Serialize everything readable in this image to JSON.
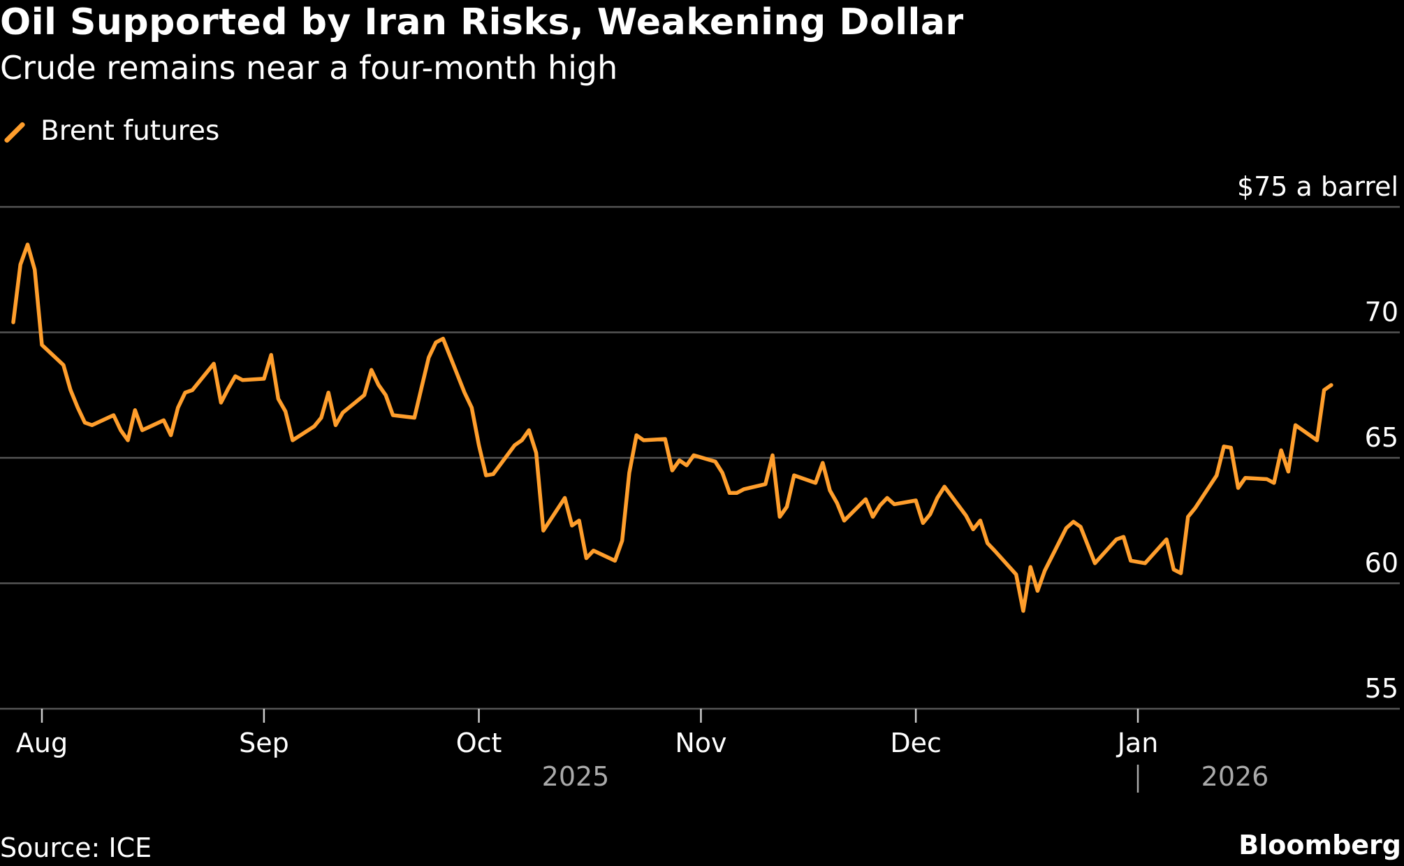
{
  "title": "Oil Supported by Iran Risks, Weakening Dollar",
  "subtitle": "Crude remains near a four-month high",
  "source": "Source: ICE",
  "brand": "Bloomberg",
  "chart_data": {
    "type": "line",
    "title": "Oil Supported by Iran Risks, Weakening Dollar",
    "subtitle": "Crude remains near a four-month high",
    "ylabel_unit": "$75 a barrel",
    "ylim": [
      55,
      75
    ],
    "yticks": [
      55,
      60,
      65,
      70,
      75
    ],
    "ytick_labels": [
      "55",
      "60",
      "65",
      "70",
      "$75 a barrel"
    ],
    "xticks": [
      {
        "date": "2025-08-01",
        "label": "Aug"
      },
      {
        "date": "2025-09-01",
        "label": "Sep"
      },
      {
        "date": "2025-10-01",
        "label": "Oct"
      },
      {
        "date": "2025-11-01",
        "label": "Nov"
      },
      {
        "date": "2025-12-01",
        "label": "Dec"
      },
      {
        "date": "2026-01-01",
        "label": "Jan"
      }
    ],
    "year_labels": [
      "2025",
      "2026"
    ],
    "grid": true,
    "legend": "top-left",
    "colors": {
      "line": "#ff9e2c",
      "grid": "#555555",
      "background": "#000000"
    },
    "series": [
      {
        "name": "Brent futures",
        "points": [
          [
            "2025-07-28",
            70.4
          ],
          [
            "2025-07-29",
            72.7
          ],
          [
            "2025-07-30",
            73.5
          ],
          [
            "2025-07-31",
            72.5
          ],
          [
            "2025-08-01",
            69.5
          ],
          [
            "2025-08-04",
            68.7
          ],
          [
            "2025-08-05",
            67.7
          ],
          [
            "2025-08-06",
            67.0
          ],
          [
            "2025-08-07",
            66.4
          ],
          [
            "2025-08-08",
            66.3
          ],
          [
            "2025-08-11",
            66.7
          ],
          [
            "2025-08-12",
            66.1
          ],
          [
            "2025-08-13",
            65.7
          ],
          [
            "2025-08-14",
            66.9
          ],
          [
            "2025-08-15",
            66.1
          ],
          [
            "2025-08-18",
            66.5
          ],
          [
            "2025-08-19",
            65.9
          ],
          [
            "2025-08-20",
            67.0
          ],
          [
            "2025-08-21",
            67.6
          ],
          [
            "2025-08-22",
            67.7
          ],
          [
            "2025-08-25",
            68.75
          ],
          [
            "2025-08-26",
            67.2
          ],
          [
            "2025-08-27",
            67.75
          ],
          [
            "2025-08-28",
            68.25
          ],
          [
            "2025-08-29",
            68.1
          ],
          [
            "2025-09-01",
            68.15
          ],
          [
            "2025-09-02",
            69.1
          ],
          [
            "2025-09-03",
            67.35
          ],
          [
            "2025-09-04",
            66.85
          ],
          [
            "2025-09-05",
            65.7
          ],
          [
            "2025-09-08",
            66.25
          ],
          [
            "2025-09-09",
            66.6
          ],
          [
            "2025-09-10",
            67.6
          ],
          [
            "2025-09-11",
            66.3
          ],
          [
            "2025-09-12",
            66.8
          ],
          [
            "2025-09-15",
            67.5
          ],
          [
            "2025-09-16",
            68.5
          ],
          [
            "2025-09-17",
            67.9
          ],
          [
            "2025-09-18",
            67.5
          ],
          [
            "2025-09-19",
            66.7
          ],
          [
            "2025-09-22",
            66.6
          ],
          [
            "2025-09-23",
            67.8
          ],
          [
            "2025-09-24",
            69.0
          ],
          [
            "2025-09-25",
            69.6
          ],
          [
            "2025-09-26",
            69.75
          ],
          [
            "2025-09-29",
            67.6
          ],
          [
            "2025-09-30",
            67.0
          ],
          [
            "2025-10-01",
            65.5
          ],
          [
            "2025-10-02",
            64.3
          ],
          [
            "2025-10-03",
            64.35
          ],
          [
            "2025-10-06",
            65.5
          ],
          [
            "2025-10-07",
            65.7
          ],
          [
            "2025-10-08",
            66.1
          ],
          [
            "2025-10-09",
            65.2
          ],
          [
            "2025-10-10",
            62.1
          ],
          [
            "2025-10-13",
            63.4
          ],
          [
            "2025-10-14",
            62.3
          ],
          [
            "2025-10-15",
            62.5
          ],
          [
            "2025-10-16",
            61.0
          ],
          [
            "2025-10-17",
            61.3
          ],
          [
            "2025-10-20",
            60.9
          ],
          [
            "2025-10-21",
            61.7
          ],
          [
            "2025-10-22",
            64.4
          ],
          [
            "2025-10-23",
            65.9
          ],
          [
            "2025-10-24",
            65.7
          ],
          [
            "2025-10-27",
            65.75
          ],
          [
            "2025-10-28",
            64.5
          ],
          [
            "2025-10-29",
            64.9
          ],
          [
            "2025-10-30",
            64.7
          ],
          [
            "2025-10-31",
            65.1
          ],
          [
            "2025-11-03",
            64.85
          ],
          [
            "2025-11-04",
            64.4
          ],
          [
            "2025-11-05",
            63.6
          ],
          [
            "2025-11-06",
            63.6
          ],
          [
            "2025-11-07",
            63.75
          ],
          [
            "2025-11-10",
            63.95
          ],
          [
            "2025-11-11",
            65.1
          ],
          [
            "2025-11-12",
            62.65
          ],
          [
            "2025-11-13",
            63.05
          ],
          [
            "2025-11-14",
            64.3
          ],
          [
            "2025-11-17",
            64.0
          ],
          [
            "2025-11-18",
            64.8
          ],
          [
            "2025-11-19",
            63.7
          ],
          [
            "2025-11-20",
            63.2
          ],
          [
            "2025-11-21",
            62.5
          ],
          [
            "2025-11-24",
            63.35
          ],
          [
            "2025-11-25",
            62.65
          ],
          [
            "2025-11-26",
            63.1
          ],
          [
            "2025-11-27",
            63.4
          ],
          [
            "2025-11-28",
            63.15
          ],
          [
            "2025-12-01",
            63.3
          ],
          [
            "2025-12-02",
            62.4
          ],
          [
            "2025-12-03",
            62.75
          ],
          [
            "2025-12-04",
            63.4
          ],
          [
            "2025-12-05",
            63.85
          ],
          [
            "2025-12-08",
            62.7
          ],
          [
            "2025-12-09",
            62.15
          ],
          [
            "2025-12-10",
            62.5
          ],
          [
            "2025-12-11",
            61.6
          ],
          [
            "2025-12-12",
            61.3
          ],
          [
            "2025-12-15",
            60.35
          ],
          [
            "2025-12-16",
            58.9
          ],
          [
            "2025-12-17",
            60.65
          ],
          [
            "2025-12-18",
            59.7
          ],
          [
            "2025-12-19",
            60.5
          ],
          [
            "2025-12-22",
            62.2
          ],
          [
            "2025-12-23",
            62.45
          ],
          [
            "2025-12-24",
            62.25
          ],
          [
            "2025-12-26",
            60.8
          ],
          [
            "2025-12-29",
            61.75
          ],
          [
            "2025-12-30",
            61.85
          ],
          [
            "2025-12-31",
            60.9
          ],
          [
            "2026-01-02",
            60.8
          ],
          [
            "2026-01-05",
            61.75
          ],
          [
            "2026-01-06",
            60.55
          ],
          [
            "2026-01-07",
            60.4
          ],
          [
            "2026-01-08",
            62.65
          ],
          [
            "2026-01-09",
            63.0
          ],
          [
            "2026-01-12",
            64.3
          ],
          [
            "2026-01-13",
            65.45
          ],
          [
            "2026-01-14",
            65.4
          ],
          [
            "2026-01-15",
            63.8
          ],
          [
            "2026-01-16",
            64.2
          ],
          [
            "2026-01-19",
            64.15
          ],
          [
            "2026-01-20",
            64.0
          ],
          [
            "2026-01-21",
            65.3
          ],
          [
            "2026-01-22",
            64.45
          ],
          [
            "2026-01-23",
            66.3
          ],
          [
            "2026-01-26",
            65.7
          ],
          [
            "2026-01-27",
            67.7
          ],
          [
            "2026-01-28",
            67.9
          ]
        ]
      }
    ]
  }
}
